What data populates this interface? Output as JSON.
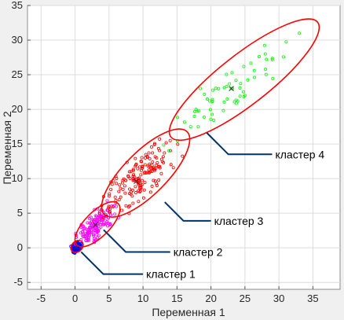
{
  "chart_data": {
    "type": "scatter",
    "title": "",
    "xlabel": "Переменная 1",
    "ylabel": "Переменная 2",
    "xlim": [
      -7,
      39
    ],
    "ylim": [
      -6,
      35
    ],
    "xticks": [
      -5,
      0,
      5,
      10,
      15,
      20,
      25,
      30,
      35
    ],
    "yticks": [
      -5,
      0,
      5,
      10,
      15,
      20,
      25,
      30,
      35
    ],
    "grid": true,
    "legend": "none",
    "series": [
      {
        "color": "#0000ff",
        "cx": 0.2,
        "cy": 0.1,
        "n": 120,
        "points_sample": [
          [
            0,
            0
          ],
          [
            0.3,
            0.2
          ],
          [
            -0.2,
            -0.3
          ],
          [
            0.5,
            0.4
          ],
          [
            0.8,
            0.6
          ]
        ],
        "ellipse": {
          "cx": 0.3,
          "cy": 0.2,
          "rx": 1.0,
          "ry": 0.75,
          "angle_deg": 45
        },
        "annotation": {
          "text": "кластер 1",
          "point_x": 0.9,
          "point_y": -0.6,
          "text_x": 10,
          "text_y": -3.8
        }
      },
      {
        "color": "#ff00ff",
        "cx": 3.0,
        "cy": 3.3,
        "n": 150,
        "points_sample": [
          [
            1.5,
            1.6
          ],
          [
            3,
            3.3
          ],
          [
            4.5,
            4.8
          ],
          [
            2.5,
            3.5
          ],
          [
            3.8,
            3.0
          ]
        ],
        "ellipse": {
          "cx": 3.3,
          "cy": 3.4,
          "rx": 4.3,
          "ry": 1.8,
          "angle_deg": 45
        },
        "annotation": {
          "text": "кластер 2",
          "point_x": 4.2,
          "point_y": 2.6,
          "text_x": 14,
          "text_y": -0.6
        }
      },
      {
        "color": "#ff0000",
        "cx": 9.0,
        "cy": 9.6,
        "n": 160,
        "points_sample": [
          [
            6,
            6.5
          ],
          [
            9,
            9.6
          ],
          [
            12,
            13
          ],
          [
            14,
            15.5
          ],
          [
            8,
            11
          ]
        ],
        "ellipse": {
          "cx": 10.4,
          "cy": 10.8,
          "rx": 8.6,
          "ry": 3.1,
          "angle_deg": 45
        },
        "annotation": {
          "text": "кластер 3",
          "point_x": 13.2,
          "point_y": 6.6,
          "text_x": 20,
          "text_y": 3.9
        }
      },
      {
        "color": "#00ff00",
        "cx": 23.0,
        "cy": 23.0,
        "n": 60,
        "points_sample": [
          [
            17,
            17.5
          ],
          [
            23,
            23
          ],
          [
            28,
            28
          ],
          [
            33,
            31
          ],
          [
            25,
            22
          ]
        ],
        "ellipse": {
          "cx": 24.9,
          "cy": 24.3,
          "rx": 13.7,
          "ry": 3.6,
          "angle_deg": 38
        },
        "annotation": {
          "text": "кластер 4",
          "point_x": 19.4,
          "point_y": 16.6,
          "text_x": 29,
          "text_y": 13.5
        }
      }
    ],
    "ellipse_color": "#ff0000",
    "centroid_marker": "x"
  }
}
